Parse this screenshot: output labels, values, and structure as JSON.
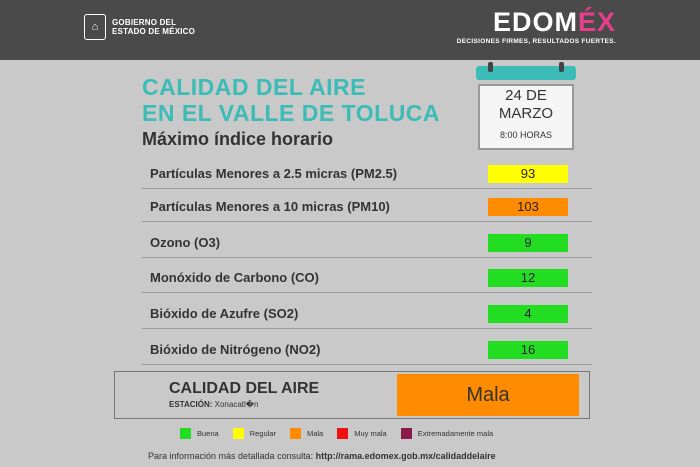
{
  "header": {
    "gov_line1": "GOBIERNO DEL",
    "gov_line2": "ESTADO DE MÉXICO",
    "brand_edo": "EDOM",
    "brand_ex": "ÉX",
    "brand_tagline": "DECISIONES FIRMES, RESULTADOS FUERTES."
  },
  "title": {
    "line1": "CALIDAD DEL AIRE",
    "line2": "EN EL VALLE DE TOLUCA",
    "subtitle": "Máximo índice horario"
  },
  "calendar": {
    "date_line1": "24 DE",
    "date_line2": "MARZO",
    "time": "8:00 HORAS"
  },
  "pollutants": [
    {
      "label": "Partículas Menores a 2.5 micras (PM2.5)",
      "value": "93",
      "color": "#ffff00"
    },
    {
      "label": "Partículas Menores a 10 micras (PM10)",
      "value": "103",
      "color": "#ff8c00"
    },
    {
      "label": "Ozono (O3)",
      "value": "9",
      "color": "#22dd22"
    },
    {
      "label": "Monóxido de Carbono (CO)",
      "value": "12",
      "color": "#22dd22"
    },
    {
      "label": "Bióxido de Azufre (SO2)",
      "value": "4",
      "color": "#22dd22"
    },
    {
      "label": "Bióxido de Nitrógeno (NO2)",
      "value": "16",
      "color": "#22dd22"
    }
  ],
  "summary": {
    "title": "CALIDAD DEL AIRE",
    "station_label": "ESTACIÓN:",
    "station_name": "Xonacatl�n",
    "value": "Mala",
    "color": "#ff8c00"
  },
  "legend": [
    {
      "label": "Buena",
      "color": "#22dd22"
    },
    {
      "label": "Regular",
      "color": "#ffff00"
    },
    {
      "label": "Mala",
      "color": "#ff8c00"
    },
    {
      "label": "Muy mala",
      "color": "#ee1111"
    },
    {
      "label": "Extremadamente mala",
      "color": "#8b1a4a"
    }
  ],
  "footer": {
    "text": "Para información más detallada consulta:",
    "link": "http://rama.edomex.gob.mx/calidaddelaire"
  }
}
